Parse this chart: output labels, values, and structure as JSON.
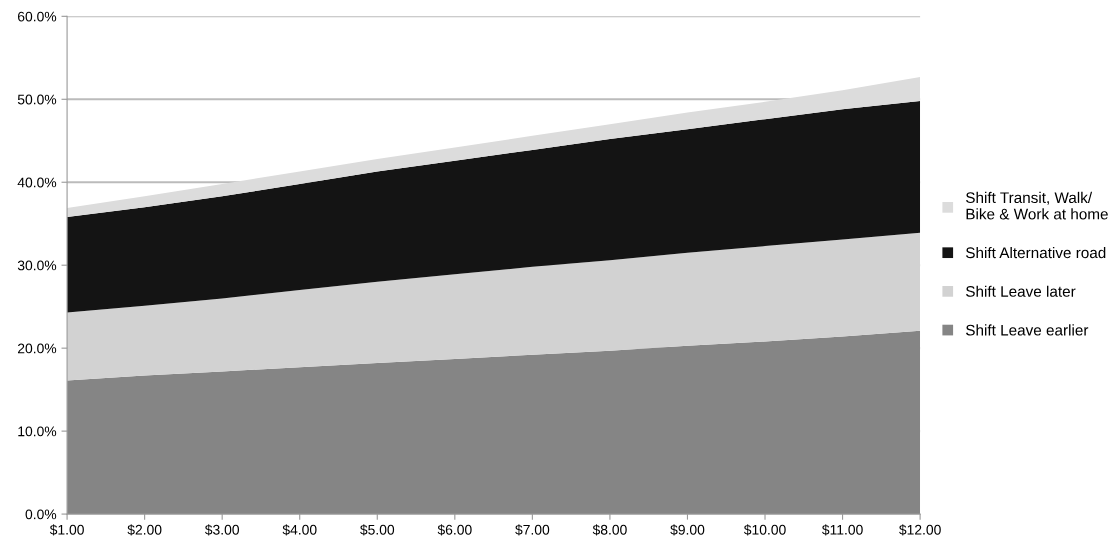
{
  "chart_data": {
    "type": "area",
    "stacked": true,
    "categories": [
      "$1.00",
      "$2.00",
      "$3.00",
      "$4.00",
      "$5.00",
      "$6.00",
      "$7.00",
      "$8.00",
      "$9.00",
      "$10.00",
      "$11.00",
      "$12.00"
    ],
    "series": [
      {
        "name": "Shift Leave earlier",
        "color": "#858585",
        "values": [
          16.1,
          16.7,
          17.2,
          17.7,
          18.2,
          18.7,
          19.2,
          19.7,
          20.3,
          20.8,
          21.4,
          22.1
        ]
      },
      {
        "name": "Shift Leave later",
        "color": "#d2d2d2",
        "values": [
          8.2,
          8.4,
          8.8,
          9.3,
          9.8,
          10.2,
          10.6,
          10.9,
          11.2,
          11.5,
          11.7,
          11.8
        ]
      },
      {
        "name": "Shift Alternative road",
        "color": "#141414",
        "values": [
          11.5,
          11.9,
          12.3,
          12.8,
          13.3,
          13.7,
          14.1,
          14.6,
          14.9,
          15.3,
          15.7,
          15.9
        ]
      },
      {
        "name": "Shift Transit, Walk/\nBike & Work at home",
        "color": "#dcdcdc",
        "values": [
          1.1,
          1.3,
          1.5,
          1.5,
          1.5,
          1.6,
          1.7,
          1.8,
          2.0,
          2.1,
          2.3,
          2.9
        ]
      }
    ],
    "ylim": [
      0,
      60
    ],
    "yticks": [
      {
        "value": 0,
        "label": "0.0%"
      },
      {
        "value": 10,
        "label": "10.0%"
      },
      {
        "value": 20,
        "label": "20.0%"
      },
      {
        "value": 30,
        "label": "30.0%"
      },
      {
        "value": 40,
        "label": "40.0%"
      },
      {
        "value": 50,
        "label": "50.0%"
      },
      {
        "value": 60,
        "label": "60.0%"
      }
    ],
    "grid": "y",
    "legend": "right"
  }
}
